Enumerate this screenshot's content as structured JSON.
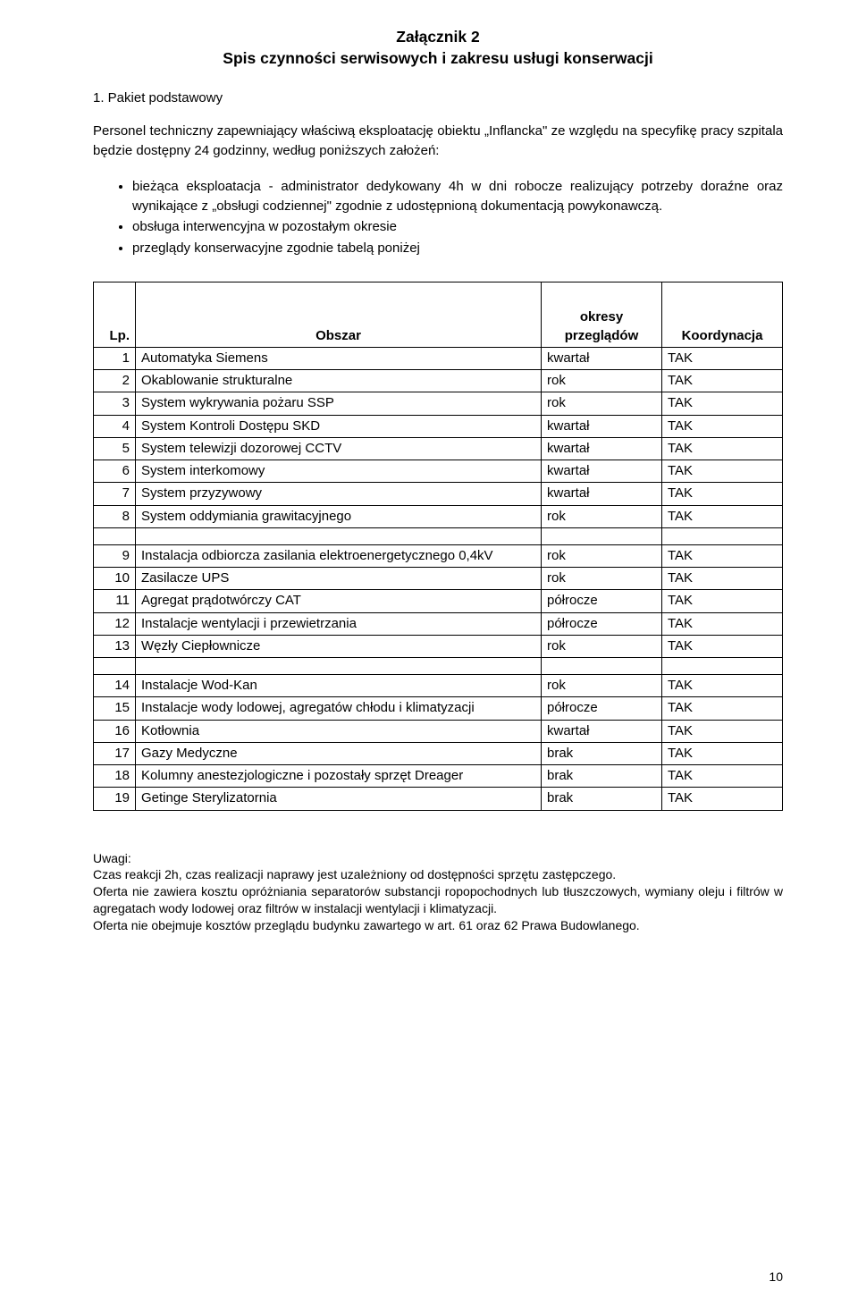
{
  "title_line1": "Załącznik 2",
  "title_line2": "Spis czynności serwisowych i zakresu usługi konserwacji",
  "section_heading": "1. Pakiet podstawowy",
  "intro": "Personel techniczny zapewniający właściwą eksploatację obiektu „Inflancka\" ze względu na specyfikę pracy szpitala będzie dostępny 24 godzinny, według poniższych założeń:",
  "bullets": [
    "bieżąca eksploatacja - administrator dedykowany 4h w dni robocze realizujący potrzeby doraźne oraz wynikające z „obsługi codziennej\" zgodnie z udostępnioną dokumentacją powykonawczą.",
    "obsługa interwencyjna w pozostałym okresie",
    "przeglądy konserwacyjne zgodnie tabelą poniżej"
  ],
  "table": {
    "headers": {
      "lp": "Lp.",
      "area": "Obszar",
      "period_line1": "okresy",
      "period_line2": "przeglądów",
      "coord": "Koordynacja"
    },
    "rows": [
      {
        "lp": "1",
        "area": "Automatyka Siemens",
        "period": "kwartał",
        "coord": "TAK",
        "gap_before": false
      },
      {
        "lp": "2",
        "area": "Okablowanie strukturalne",
        "period": "rok",
        "coord": "TAK",
        "gap_before": false
      },
      {
        "lp": "3",
        "area": "System wykrywania pożaru SSP",
        "period": "rok",
        "coord": "TAK",
        "gap_before": false
      },
      {
        "lp": "4",
        "area": "System Kontroli Dostępu SKD",
        "period": "kwartał",
        "coord": "TAK",
        "gap_before": false
      },
      {
        "lp": "5",
        "area": "System telewizji dozorowej CCTV",
        "period": "kwartał",
        "coord": "TAK",
        "gap_before": false
      },
      {
        "lp": "6",
        "area": "System interkomowy",
        "period": "kwartał",
        "coord": "TAK",
        "gap_before": false
      },
      {
        "lp": "7",
        "area": "System przyzywowy",
        "period": "kwartał",
        "coord": "TAK",
        "gap_before": false
      },
      {
        "lp": "8",
        "area": "System oddymiania grawitacyjnego",
        "period": "rok",
        "coord": "TAK",
        "gap_before": false
      },
      {
        "lp": "9",
        "area": "Instalacja odbiorcza zasilania elektroenergetycznego 0,4kV",
        "period": "rok",
        "coord": "TAK",
        "gap_before": true
      },
      {
        "lp": "10",
        "area": "Zasilacze UPS",
        "period": "rok",
        "coord": "TAK",
        "gap_before": false
      },
      {
        "lp": "11",
        "area": "Agregat prądotwórczy CAT",
        "period": "półrocze",
        "coord": "TAK",
        "gap_before": false
      },
      {
        "lp": "12",
        "area": "Instalacje wentylacji i przewietrzania",
        "period": "półrocze",
        "coord": "TAK",
        "gap_before": false
      },
      {
        "lp": "13",
        "area": "Węzły Ciepłownicze",
        "period": "rok",
        "coord": "TAK",
        "gap_before": false
      },
      {
        "lp": "14",
        "area": "Instalacje Wod-Kan",
        "period": "rok",
        "coord": "TAK",
        "gap_before": true
      },
      {
        "lp": "15",
        "area": "Instalacje wody lodowej, agregatów chłodu i klimatyzacji",
        "period": "półrocze",
        "coord": "TAK",
        "gap_before": false
      },
      {
        "lp": "16",
        "area": "Kotłownia",
        "period": "kwartał",
        "coord": "TAK",
        "gap_before": false
      },
      {
        "lp": "17",
        "area": "Gazy Medyczne",
        "period": "brak",
        "coord": "TAK",
        "gap_before": false
      },
      {
        "lp": "18",
        "area": "Kolumny anestezjologiczne i pozostały sprzęt Dreager",
        "period": "brak",
        "coord": "TAK",
        "gap_before": false
      },
      {
        "lp": "19",
        "area": "Getinge Sterylizatornia",
        "period": "brak",
        "coord": "TAK",
        "gap_before": false
      }
    ]
  },
  "notes_heading": "Uwagi:",
  "notes_lines": [
    "Czas reakcji 2h, czas realizacji naprawy jest uzależniony od dostępności sprzętu zastępczego.",
    "Oferta nie zawiera kosztu opróżniania separatorów substancji ropopochodnych lub tłuszczowych, wymiany oleju i filtrów w agregatach wody lodowej oraz filtrów w instalacji wentylacji i klimatyzacji.",
    "Oferta nie obejmuje kosztów przeglądu budynku zawartego w art. 61 oraz 62 Prawa Budowlanego."
  ],
  "page_number": "10"
}
